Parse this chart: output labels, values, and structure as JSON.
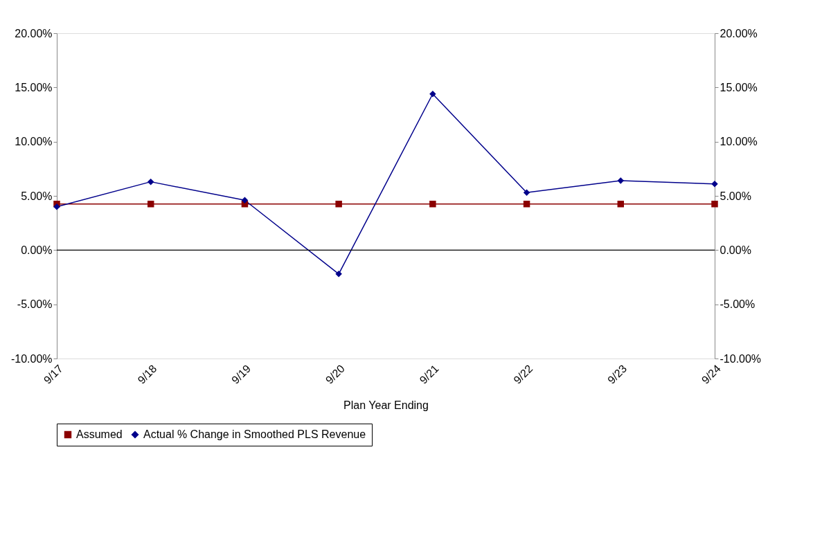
{
  "chart_data": {
    "type": "line",
    "xlabel": "Plan Year Ending",
    "categories": [
      "9/17",
      "9/18",
      "9/19",
      "9/20",
      "9/21",
      "9/22",
      "9/23",
      "9/24"
    ],
    "series": [
      {
        "name": "Assumed",
        "color": "#8b0000",
        "marker": "square",
        "values": [
          4.25,
          4.25,
          4.25,
          4.25,
          4.25,
          4.25,
          4.25,
          4.25
        ]
      },
      {
        "name": "Actual % Change in Smoothed PLS Revenue",
        "color": "#00008b",
        "marker": "diamond",
        "values": [
          4.0,
          6.3,
          4.6,
          -2.2,
          14.4,
          5.3,
          6.4,
          6.1
        ]
      }
    ],
    "ylim": [
      -10,
      20
    ],
    "yticks": [
      {
        "value": -10,
        "label": "-10.00%"
      },
      {
        "value": -5,
        "label": "-5.00%"
      },
      {
        "value": 0,
        "label": "0.00%"
      },
      {
        "value": 5,
        "label": "5.00%"
      },
      {
        "value": 10,
        "label": "10.00%"
      },
      {
        "value": 15,
        "label": "15.00%"
      },
      {
        "value": 20,
        "label": "20.00%"
      }
    ],
    "y2lim": [
      -10,
      20
    ],
    "y2ticks": [
      {
        "value": -10,
        "label": "-10.00%"
      },
      {
        "value": -5,
        "label": "-5.00%"
      },
      {
        "value": 0,
        "label": "0.00%"
      },
      {
        "value": 5,
        "label": "5.00%"
      },
      {
        "value": 10,
        "label": "10.00%"
      },
      {
        "value": 15,
        "label": "15.00%"
      },
      {
        "value": 20,
        "label": "20.00%"
      }
    ],
    "ref_lines": [
      {
        "axis": "y",
        "value": 0,
        "color": "#000000"
      }
    ],
    "grid": false,
    "legend": "bottom",
    "line_style": "solid"
  }
}
